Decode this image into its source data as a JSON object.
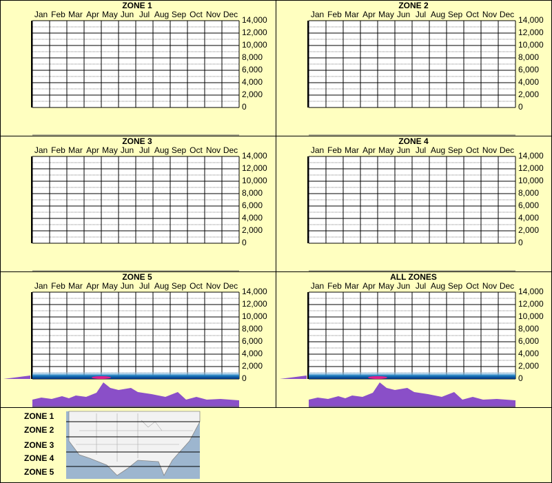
{
  "chart_data": [
    {
      "type": "grid",
      "title": "ZONE 1",
      "categories": [
        "Jan",
        "Feb",
        "Mar",
        "Apr",
        "May",
        "Jun",
        "Jul",
        "Aug",
        "Sep",
        "Oct",
        "Nov",
        "Dec"
      ],
      "ylim": [
        0,
        14000
      ],
      "yticks": [
        0,
        {
          "value": 2000,
          "label": "2,000"
        },
        {
          "value": 4000,
          "label": "4,000"
        },
        {
          "value": 6000,
          "label": "6,000"
        },
        {
          "value": 8000,
          "label": "8,000"
        },
        {
          "value": 10000,
          "label": "10,000"
        },
        {
          "value": 12000,
          "label": "12,000"
        },
        {
          "value": 14000,
          "label": "14,000"
        }
      ],
      "minor_yticks": [
        1000,
        3000,
        5000,
        7000,
        9000,
        11000,
        13000
      ],
      "grid": true
    },
    {
      "type": "grid",
      "title": "ZONE 2",
      "categories": [
        "Jan",
        "Feb",
        "Mar",
        "Apr",
        "May",
        "Jun",
        "Jul",
        "Aug",
        "Sep",
        "Oct",
        "Nov",
        "Dec"
      ],
      "ylim": [
        0,
        14000
      ],
      "yticks": [
        0,
        {
          "value": 2000,
          "label": "2,000"
        },
        {
          "value": 4000,
          "label": "4,000"
        },
        {
          "value": 6000,
          "label": "6,000"
        },
        {
          "value": 8000,
          "label": "8,000"
        },
        {
          "value": 10000,
          "label": "10,000"
        },
        {
          "value": 12000,
          "label": "12,000"
        },
        {
          "value": 14000,
          "label": "14,000"
        }
      ],
      "minor_yticks": [
        1000,
        3000,
        5000,
        7000,
        9000,
        11000,
        13000
      ],
      "grid": true
    },
    {
      "type": "grid",
      "title": "ZONE 3",
      "categories": [
        "Jan",
        "Feb",
        "Mar",
        "Apr",
        "May",
        "Jun",
        "Jul",
        "Aug",
        "Sep",
        "Oct",
        "Nov",
        "Dec"
      ],
      "ylim": [
        0,
        14000
      ],
      "yticks": [
        0,
        {
          "value": 2000,
          "label": "2,000"
        },
        {
          "value": 4000,
          "label": "4,000"
        },
        {
          "value": 6000,
          "label": "6,000"
        },
        {
          "value": 8000,
          "label": "8,000"
        },
        {
          "value": 10000,
          "label": "10,000"
        },
        {
          "value": 12000,
          "label": "12,000"
        },
        {
          "value": 14000,
          "label": "14,000"
        }
      ],
      "minor_yticks": [
        1000,
        3000,
        5000,
        7000,
        9000,
        11000,
        13000
      ],
      "grid": true
    },
    {
      "type": "grid",
      "title": "ZONE 4",
      "categories": [
        "Jan",
        "Feb",
        "Mar",
        "Apr",
        "May",
        "Jun",
        "Jul",
        "Aug",
        "Sep",
        "Oct",
        "Nov",
        "Dec"
      ],
      "ylim": [
        0,
        14000
      ],
      "yticks": [
        0,
        {
          "value": 2000,
          "label": "2,000"
        },
        {
          "value": 4000,
          "label": "4,000"
        },
        {
          "value": 6000,
          "label": "6,000"
        },
        {
          "value": 8000,
          "label": "8,000"
        },
        {
          "value": 10000,
          "label": "10,000"
        },
        {
          "value": 12000,
          "label": "12,000"
        },
        {
          "value": 14000,
          "label": "14,000"
        }
      ],
      "minor_yticks": [
        1000,
        3000,
        5000,
        7000,
        9000,
        11000,
        13000
      ],
      "grid": true
    },
    {
      "type": "heatmap",
      "title": "ZONE 5",
      "categories": [
        "Jan",
        "Feb",
        "Mar",
        "Apr",
        "May",
        "Jun",
        "Jul",
        "Aug",
        "Sep",
        "Oct",
        "Nov",
        "Dec"
      ],
      "ylim": [
        0,
        14000
      ],
      "yticks": [
        0,
        {
          "value": 2000,
          "label": "2,000"
        },
        {
          "value": 4000,
          "label": "4,000"
        },
        {
          "value": 6000,
          "label": "6,000"
        },
        {
          "value": 8000,
          "label": "8,000"
        },
        {
          "value": 10000,
          "label": "10,000"
        },
        {
          "value": 12000,
          "label": "12,000"
        },
        {
          "value": 14000,
          "label": "14,000"
        }
      ],
      "minor_yticks": [
        1000,
        3000,
        5000,
        7000,
        9000,
        11000,
        13000
      ],
      "grid": true
    },
    {
      "type": "heatmap",
      "title": "ALL ZONES",
      "categories": [
        "Jan",
        "Feb",
        "Mar",
        "Apr",
        "May",
        "Jun",
        "Jul",
        "Aug",
        "Sep",
        "Oct",
        "Nov",
        "Dec"
      ],
      "ylim": [
        0,
        14000
      ],
      "yticks": [
        0,
        {
          "value": 2000,
          "label": "2,000"
        },
        {
          "value": 4000,
          "label": "4,000"
        },
        {
          "value": 6000,
          "label": "6,000"
        },
        {
          "value": 8000,
          "label": "8,000"
        },
        {
          "value": 10000,
          "label": "10,000"
        },
        {
          "value": 12000,
          "label": "12,000"
        },
        {
          "value": 14000,
          "label": "14,000"
        }
      ],
      "minor_yticks": [
        1000,
        3000,
        5000,
        7000,
        9000,
        11000,
        13000
      ],
      "grid": true
    }
  ],
  "zone_legend": [
    "ZONE 1",
    "ZONE 2",
    "ZONE 3",
    "ZONE 4",
    "ZONE 5"
  ]
}
